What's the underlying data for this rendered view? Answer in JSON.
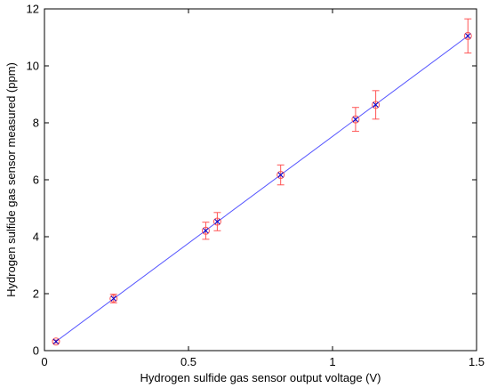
{
  "chart_data": {
    "type": "scatter",
    "title": "",
    "xlabel": "Hydrogen sulfide gas sensor output voltage (V)",
    "ylabel": "Hydrogen sulfide gas sensor measured (ppm)",
    "xlim": [
      0,
      1.5
    ],
    "ylim": [
      0,
      12
    ],
    "xticks": [
      0,
      0.5,
      1,
      1.5
    ],
    "xtick_labels": [
      "0",
      "0.5",
      "1",
      "1.5"
    ],
    "yticks": [
      0,
      2,
      4,
      6,
      8,
      10,
      12
    ],
    "ytick_labels": [
      "0",
      "2",
      "4",
      "6",
      "8",
      "10",
      "12"
    ],
    "grid": false,
    "series": [
      {
        "kind": "errorbar-points",
        "marker": "circle",
        "color": "#ff5555",
        "x": [
          0.04,
          0.24,
          0.56,
          0.6,
          0.82,
          1.08,
          1.15,
          1.47
        ],
        "y": [
          0.32,
          1.83,
          4.21,
          4.53,
          6.17,
          8.12,
          8.63,
          11.05
        ],
        "err": [
          0.05,
          0.15,
          0.3,
          0.32,
          0.35,
          0.42,
          0.5,
          0.6
        ]
      },
      {
        "kind": "points",
        "marker": "x",
        "color": "#0000cc",
        "x": [
          0.04,
          0.24,
          0.56,
          0.6,
          0.82,
          1.08,
          1.15,
          1.47
        ],
        "y": [
          0.32,
          1.83,
          4.21,
          4.53,
          6.17,
          8.12,
          8.63,
          11.05
        ]
      },
      {
        "kind": "fit-line",
        "color": "#5555ff",
        "x": [
          0.04,
          1.47
        ],
        "y": [
          0.32,
          11.05
        ]
      }
    ]
  }
}
